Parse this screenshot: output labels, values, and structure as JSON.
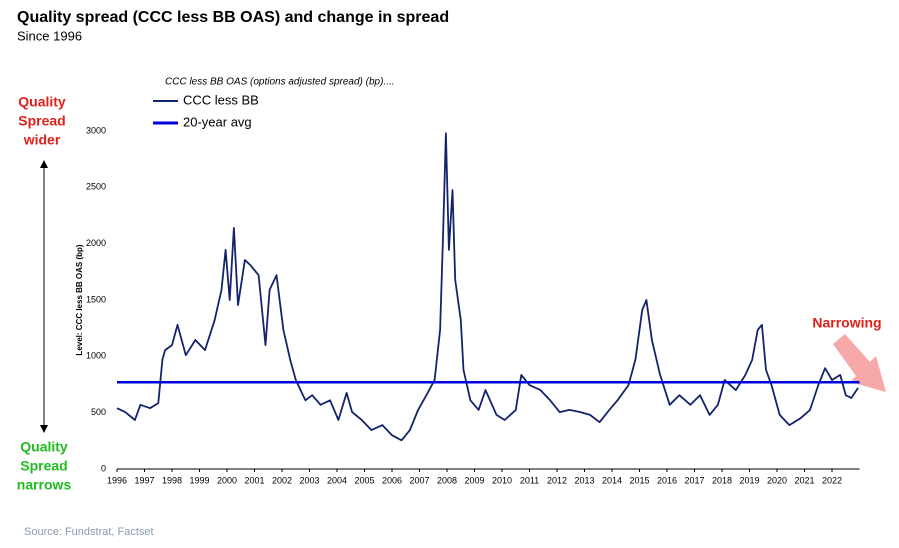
{
  "chart_data": {
    "type": "line",
    "title": "Quality spread (CCC less BB OAS) and change in spread",
    "subtitle": "Since 1996",
    "legend_title": "CCC less BB OAS (options adjusted spread) (bp)....",
    "y_label": "Level: CCC less BB OAS (bp)",
    "x": [
      1996.0,
      1996.3,
      1996.65,
      1996.85,
      1997.2,
      1997.5,
      1997.65,
      1997.75,
      1998.0,
      1998.2,
      1998.5,
      1998.85,
      1999.2,
      1999.55,
      1999.8,
      1999.95,
      2000.1,
      2000.25,
      2000.4,
      2000.65,
      2000.85,
      2001.15,
      2001.4,
      2001.55,
      2001.8,
      2002.05,
      2002.3,
      2002.5,
      2002.85,
      2003.1,
      2003.4,
      2003.75,
      2004.05,
      2004.35,
      2004.55,
      2004.9,
      2005.25,
      2005.65,
      2006.0,
      2006.35,
      2006.65,
      2006.95,
      2007.25,
      2007.55,
      2007.75,
      2007.85,
      2007.96,
      2008.07,
      2008.2,
      2008.3,
      2008.5,
      2008.6,
      2008.85,
      2009.15,
      2009.4,
      2009.8,
      2010.1,
      2010.5,
      2010.7,
      2011.0,
      2011.4,
      2011.75,
      2012.1,
      2012.45,
      2012.85,
      2013.2,
      2013.55,
      2013.9,
      2014.2,
      2014.6,
      2014.85,
      2015.1,
      2015.25,
      2015.45,
      2015.75,
      2016.1,
      2016.45,
      2016.85,
      2017.2,
      2017.55,
      2017.85,
      2018.1,
      2018.5,
      2018.85,
      2019.1,
      2019.3,
      2019.45,
      2019.6,
      2019.8,
      2020.1,
      2020.45,
      2020.85,
      2021.2,
      2021.5,
      2021.75,
      2022.0,
      2022.3,
      2022.5,
      2022.7,
      2022.95
    ],
    "series": [
      {
        "name": "CCC less BB",
        "color": "#14246b",
        "values": [
          540,
          505,
          435,
          570,
          540,
          585,
          970,
          1055,
          1100,
          1280,
          1010,
          1145,
          1055,
          1320,
          1590,
          1945,
          1500,
          2140,
          1455,
          1855,
          1810,
          1720,
          1100,
          1590,
          1720,
          1235,
          970,
          790,
          610,
          655,
          570,
          610,
          435,
          675,
          505,
          435,
          345,
          390,
          300,
          255,
          345,
          525,
          655,
          790,
          1235,
          2030,
          2980,
          1945,
          2475,
          1680,
          1320,
          880,
          610,
          525,
          700,
          480,
          435,
          525,
          835,
          745,
          700,
          610,
          505,
          525,
          505,
          480,
          415,
          525,
          610,
          745,
          970,
          1410,
          1500,
          1145,
          835,
          570,
          655,
          570,
          655,
          480,
          570,
          790,
          700,
          835,
          970,
          1235,
          1280,
          880,
          745,
          480,
          390,
          450,
          525,
          745,
          895,
          790,
          835,
          655,
          630,
          720
        ]
      }
    ],
    "reference_line": {
      "name": "20-year avg",
      "value": 770,
      "color": "#0000dd"
    },
    "xlim": [
      1996,
      2023
    ],
    "xticks": [
      1996,
      1997,
      1998,
      1999,
      2000,
      2001,
      2002,
      2003,
      2004,
      2005,
      2006,
      2007,
      2008,
      2009,
      2010,
      2011,
      2012,
      2013,
      2014,
      2015,
      2016,
      2017,
      2018,
      2019,
      2020,
      2021,
      2022
    ],
    "ylim": [
      0,
      3000
    ],
    "yticks": [
      0,
      500,
      1000,
      1500,
      2000,
      2500,
      3000
    ],
    "annotations": [
      {
        "lines": [
          "Quality",
          "Spread",
          "wider"
        ],
        "color": "#e0201b"
      },
      {
        "lines": [
          "Quality",
          "Spread",
          "narrows"
        ],
        "color": "#22bb22"
      },
      {
        "lines": [
          "Narrowing"
        ],
        "color": "#e0201b"
      }
    ],
    "source": "Source: Fundstrat, Factset"
  }
}
